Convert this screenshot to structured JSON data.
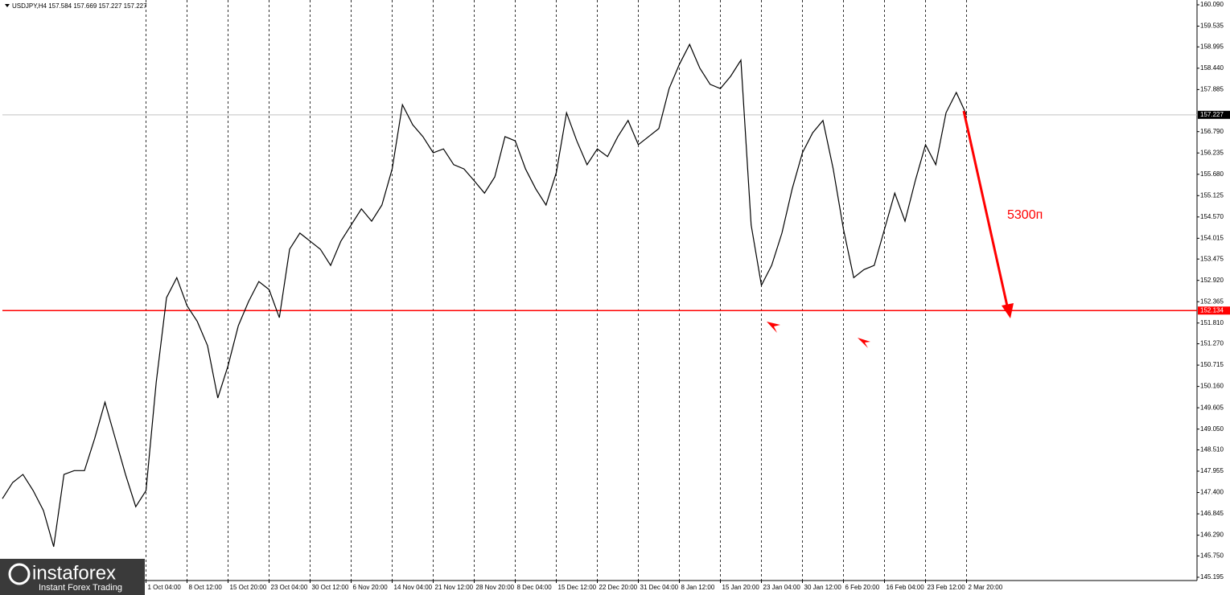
{
  "chart_data": {
    "type": "line",
    "title": "USDJPY,H4  157.584 157.669 157.227 157.227",
    "annotation": "5300п",
    "watermark": {
      "brand": "instaforex",
      "tagline": "Instant Forex Trading"
    },
    "categories": [
      null,
      null,
      null,
      null,
      null,
      null,
      null,
      null,
      null,
      null,
      null,
      null,
      null,
      null,
      "1 Oct 04:00",
      null,
      null,
      null,
      "8 Oct 12:00",
      null,
      null,
      null,
      "15 Oct 20:00",
      null,
      null,
      null,
      "23 Oct 04:00",
      null,
      null,
      null,
      "30 Oct 12:00",
      null,
      null,
      null,
      "6 Nov 20:00",
      null,
      null,
      null,
      "14 Nov 04:00",
      null,
      null,
      null,
      "21 Nov 12:00",
      null,
      null,
      null,
      "28 Nov 20:00",
      null,
      null,
      null,
      "8 Dec 04:00",
      null,
      null,
      null,
      "15 Dec 12:00",
      null,
      null,
      null,
      "22 Dec 20:00",
      null,
      null,
      null,
      "31 Dec 04:00",
      null,
      null,
      null,
      "8 Jan 12:00",
      null,
      null,
      null,
      "15 Jan 20:00",
      null,
      null,
      null,
      "23 Jan 04:00",
      null,
      null,
      null,
      "30 Jan 12:00",
      null,
      null,
      null,
      "6 Feb 20:00",
      null,
      null,
      null,
      "16 Feb 04:00",
      null,
      null,
      null,
      "23 Feb 12:00",
      null,
      null,
      null,
      "2 Mar 20:00"
    ],
    "series": [
      {
        "name": "USDJPY",
        "color": "#000000",
        "values": [
          147.24,
          147.66,
          147.87,
          147.45,
          146.93,
          145.99,
          147.87,
          147.97,
          147.97,
          148.81,
          149.75,
          148.81,
          147.87,
          147.03,
          147.45,
          150.28,
          152.47,
          152.99,
          152.26,
          151.85,
          151.22,
          149.86,
          150.7,
          151.74,
          152.37,
          152.89,
          152.68,
          151.95,
          153.73,
          154.15,
          153.94,
          153.73,
          153.31,
          153.94,
          154.36,
          154.78,
          154.46,
          154.88,
          155.82,
          157.49,
          156.97,
          156.66,
          156.24,
          156.34,
          155.93,
          155.82,
          155.51,
          155.19,
          155.61,
          156.66,
          156.55,
          155.82,
          155.3,
          154.88,
          155.72,
          157.28,
          156.55,
          155.93,
          156.34,
          156.14,
          156.66,
          157.08,
          156.45,
          156.66,
          156.87,
          157.91,
          158.54,
          159.06,
          158.44,
          158.02,
          157.91,
          158.23,
          158.65,
          154.36,
          152.79,
          153.31,
          154.15,
          155.3,
          156.24,
          156.76,
          157.08,
          155.82,
          154.25,
          152.99,
          153.2,
          153.31,
          154.25,
          155.19,
          154.46,
          155.51,
          156.45,
          155.93,
          157.28,
          157.81,
          157.227
        ]
      }
    ],
    "price_lines": [
      {
        "value": 157.227,
        "color": "#c0c0c0"
      },
      {
        "value": 152.134,
        "color": "#ff0000"
      }
    ],
    "ylim": [
      145.11,
      160.215
    ],
    "yticks": [
      {
        "value": 160.09,
        "label": "160.090"
      },
      159.535,
      158.995,
      {
        "value": 158.44,
        "label": "158.440"
      },
      157.885,
      {
        "value": 156.79,
        "label": "156.790"
      },
      156.235,
      {
        "value": 155.68,
        "label": "155.680"
      },
      155.125,
      {
        "value": 154.57,
        "label": "154.570"
      },
      154.015,
      153.475,
      {
        "value": 152.92,
        "label": "152.920"
      },
      152.365,
      {
        "value": 151.81,
        "label": "151.810"
      },
      {
        "value": 151.27,
        "label": "151.270"
      },
      150.715,
      {
        "value": 150.16,
        "label": "150.160"
      },
      149.605,
      {
        "value": 149.05,
        "label": "149.050"
      },
      {
        "value": 148.51,
        "label": "148.510"
      },
      147.955,
      {
        "value": 147.4,
        "label": "147.400"
      },
      146.845,
      {
        "value": 146.29,
        "label": "146.290"
      },
      {
        "value": 145.75,
        "label": "145.750"
      },
      145.195
    ],
    "grid": true
  }
}
